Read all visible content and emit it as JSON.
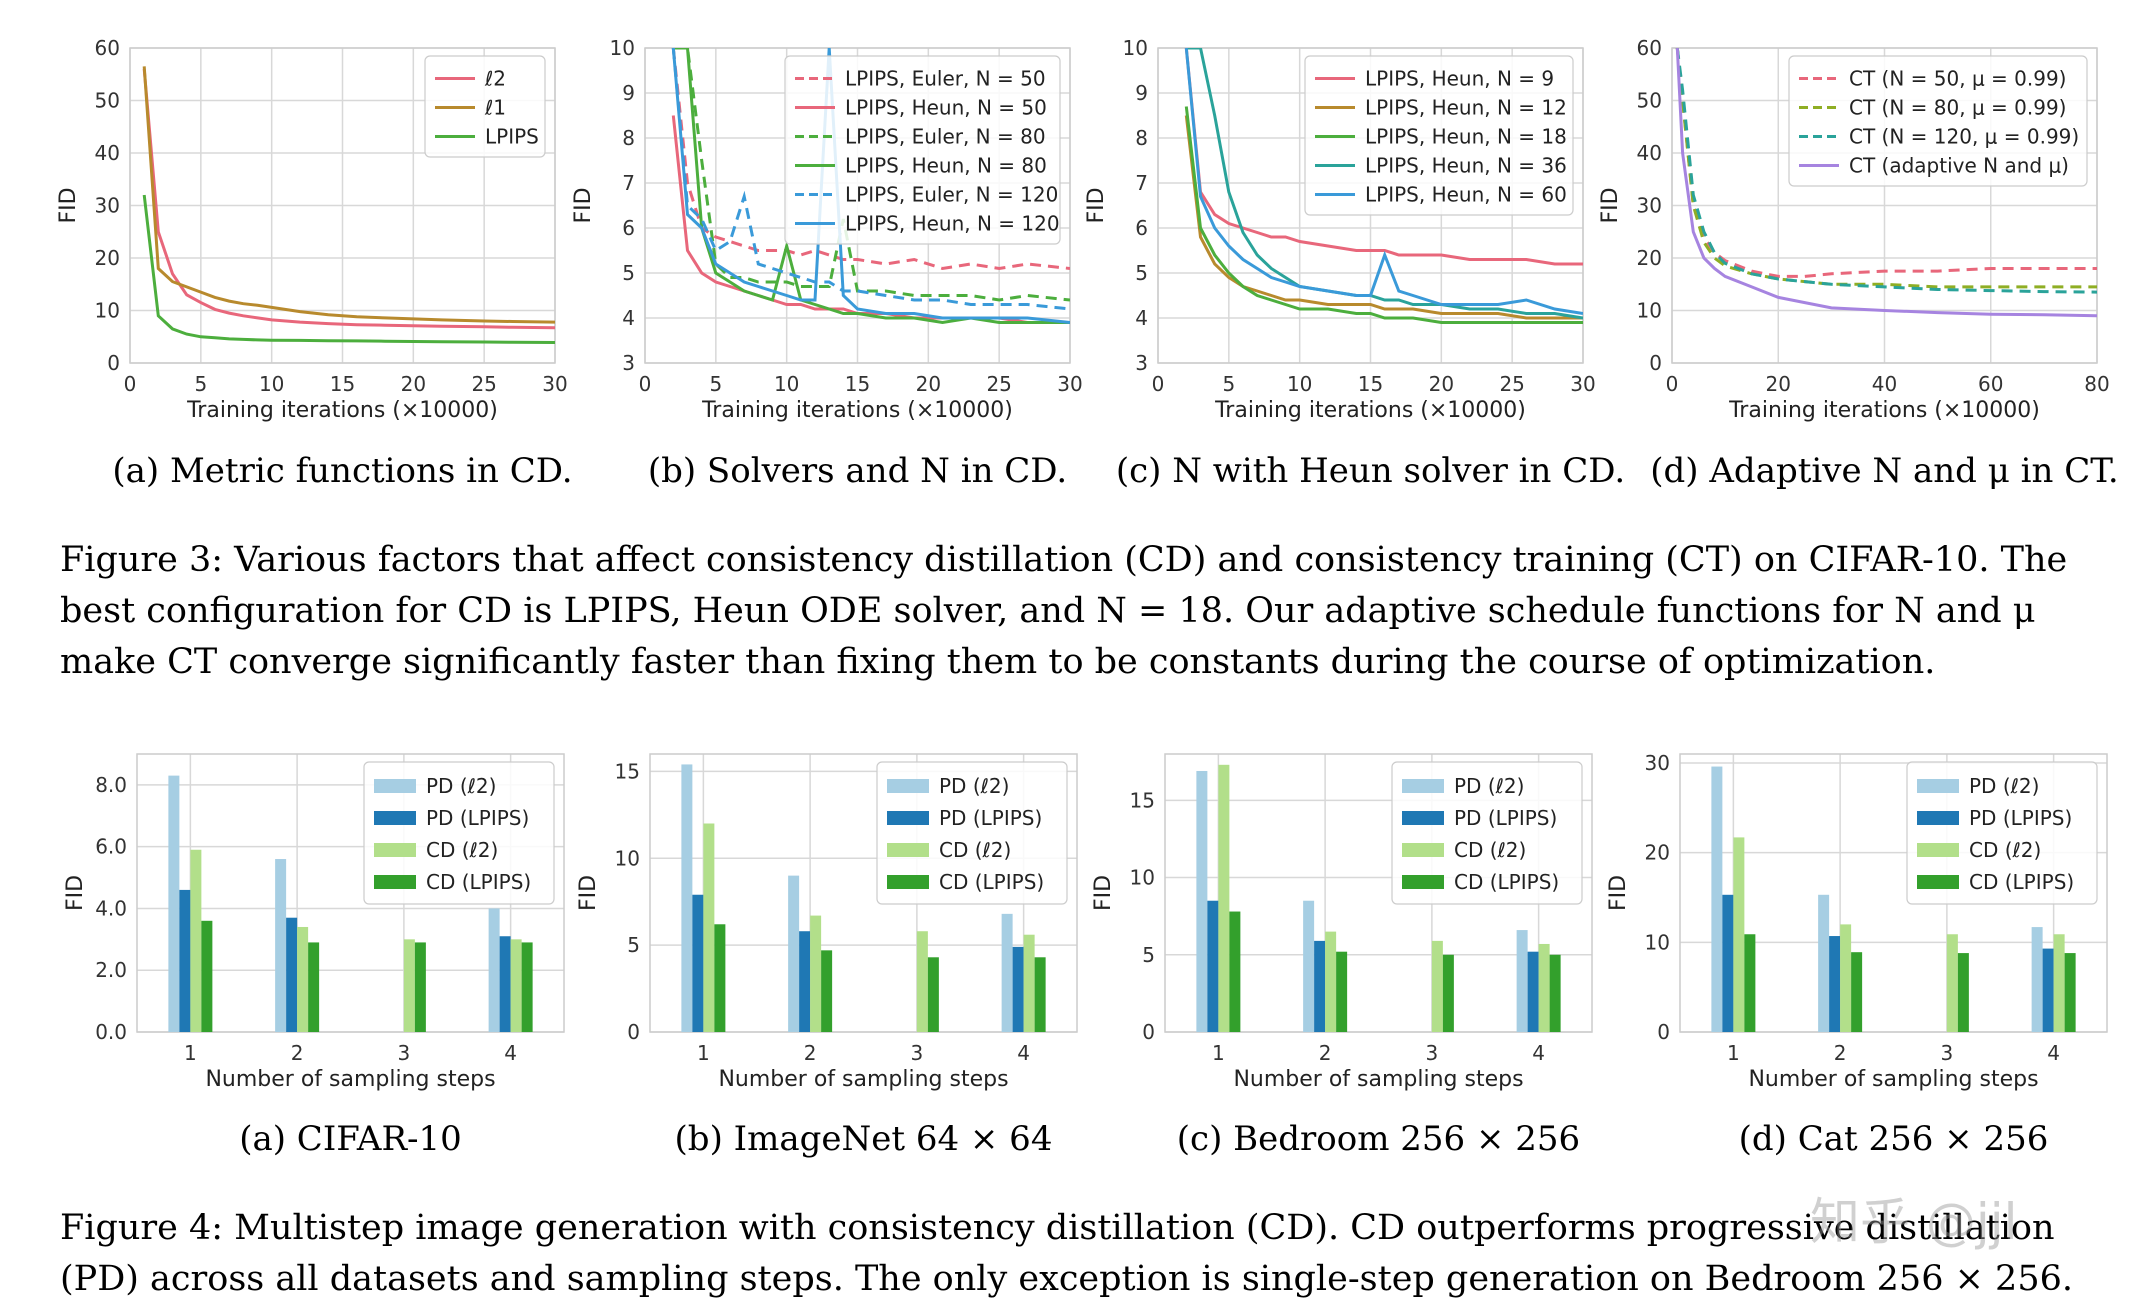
{
  "figure3": {
    "caption": "Figure 3: Various factors that affect consistency distillation (CD) and consistency training (CT) on CIFAR-10. The best configuration for CD is LPIPS, Heun ODE solver, and N = 18. Our adaptive schedule functions for N and μ make CT converge significantly faster than fixing them to be constants during the course of optimization."
  },
  "figure4": {
    "caption": "Figure 4: Multistep image generation with consistency distillation (CD). CD outperforms progressive distillation (PD) across all datasets and sampling steps. The only exception is single-step generation on Bedroom 256 × 256."
  },
  "watermark": "知乎 @jjl",
  "chart_data": [
    {
      "type": "line",
      "subtitle": "(a) Metric functions in CD.",
      "xlabel": "Training iterations (×10000)",
      "ylabel": "FID",
      "xlim": [
        0,
        30
      ],
      "ylim": [
        0,
        60
      ],
      "xticks": [
        0,
        5,
        10,
        15,
        20,
        25,
        30
      ],
      "yticks": [
        0,
        10,
        20,
        30,
        40,
        50,
        60
      ],
      "x": [
        1,
        2,
        3,
        4,
        5,
        6,
        7,
        8,
        9,
        10,
        12,
        14,
        16,
        18,
        20,
        22,
        25,
        27,
        30
      ],
      "legend_position": "top-right",
      "series": [
        {
          "name": "ℓ2",
          "color": "#e8677b",
          "dash": "solid",
          "values": [
            56,
            25,
            17,
            13,
            11.5,
            10.2,
            9.5,
            9,
            8.6,
            8.2,
            7.8,
            7.5,
            7.3,
            7.2,
            7.1,
            7.0,
            6.9,
            6.8,
            6.7
          ]
        },
        {
          "name": "ℓ1",
          "color": "#b88a2d",
          "dash": "solid",
          "values": [
            56.5,
            18,
            15.5,
            14.5,
            13.5,
            12.5,
            11.8,
            11.3,
            11,
            10.6,
            9.8,
            9.2,
            8.8,
            8.6,
            8.4,
            8.2,
            8.0,
            7.9,
            7.8
          ]
        },
        {
          "name": "LPIPS",
          "color": "#4cae3d",
          "dash": "solid",
          "values": [
            32,
            9,
            6.5,
            5.5,
            5.0,
            4.8,
            4.6,
            4.5,
            4.4,
            4.35,
            4.3,
            4.25,
            4.2,
            4.15,
            4.1,
            4.05,
            4.0,
            3.95,
            3.9
          ]
        }
      ]
    },
    {
      "type": "line",
      "subtitle": "(b) Solvers and N in CD.",
      "xlabel": "Training iterations (×10000)",
      "ylabel": "FID",
      "xlim": [
        0,
        30
      ],
      "ylim": [
        3,
        10
      ],
      "xticks": [
        0,
        5,
        10,
        15,
        20,
        25,
        30
      ],
      "yticks": [
        3,
        4,
        5,
        6,
        7,
        8,
        9,
        10
      ],
      "x": [
        2,
        3,
        4,
        5,
        6,
        7,
        8,
        9,
        10,
        11,
        12,
        13,
        14,
        15,
        17,
        19,
        21,
        23,
        25,
        27,
        30
      ],
      "legend_position": "top-right",
      "series": [
        {
          "name": "LPIPS, Euler, N = 50",
          "color": "#e8677b",
          "dash": "dashed",
          "values": [
            10,
            7.0,
            6.0,
            5.8,
            5.7,
            5.6,
            5.5,
            5.5,
            5.5,
            5.4,
            5.5,
            5.4,
            5.3,
            5.3,
            5.2,
            5.3,
            5.1,
            5.2,
            5.1,
            5.2,
            5.1
          ]
        },
        {
          "name": "LPIPS, Heun, N = 50",
          "color": "#e8677b",
          "dash": "solid",
          "values": [
            8.5,
            5.5,
            5.0,
            4.8,
            4.7,
            4.6,
            4.5,
            4.4,
            4.3,
            4.3,
            4.2,
            4.2,
            4.2,
            4.1,
            4.1,
            4.0,
            4.0,
            4.0,
            4.0,
            3.9,
            3.9
          ]
        },
        {
          "name": "LPIPS, Euler, N = 80",
          "color": "#4cae3d",
          "dash": "dashed",
          "values": [
            10,
            10,
            7.5,
            5.2,
            4.9,
            4.9,
            4.8,
            4.8,
            4.8,
            4.7,
            4.7,
            4.7,
            6.2,
            4.6,
            4.6,
            4.5,
            4.5,
            4.5,
            4.4,
            4.5,
            4.4
          ]
        },
        {
          "name": "LPIPS, Heun, N = 80",
          "color": "#4cae3d",
          "dash": "solid",
          "values": [
            10,
            10,
            6.0,
            5.0,
            4.8,
            4.6,
            4.5,
            4.4,
            5.6,
            4.4,
            4.3,
            4.2,
            4.1,
            4.1,
            4.0,
            4.0,
            3.9,
            4.0,
            3.9,
            3.9,
            3.9
          ]
        },
        {
          "name": "LPIPS, Euler, N = 120",
          "color": "#3a9ad9",
          "dash": "dashed",
          "values": [
            10,
            6.5,
            6.2,
            5.5,
            5.7,
            6.7,
            5.2,
            5.1,
            5.0,
            4.9,
            4.8,
            4.8,
            4.6,
            4.6,
            4.5,
            4.4,
            4.4,
            4.3,
            4.3,
            4.3,
            4.2
          ]
        },
        {
          "name": "LPIPS, Heun, N = 120",
          "color": "#3a9ad9",
          "dash": "solid",
          "values": [
            10,
            6.3,
            6.0,
            5.2,
            5.0,
            4.8,
            4.7,
            4.6,
            4.5,
            4.4,
            4.4,
            10,
            4.5,
            4.2,
            4.1,
            4.1,
            4.0,
            4.0,
            4.0,
            4.0,
            3.9
          ]
        }
      ]
    },
    {
      "type": "line",
      "subtitle": "(c) N with Heun solver in CD.",
      "xlabel": "Training iterations (×10000)",
      "ylabel": "FID",
      "xlim": [
        0,
        30
      ],
      "ylim": [
        3,
        10
      ],
      "xticks": [
        0,
        5,
        10,
        15,
        20,
        25,
        30
      ],
      "yticks": [
        3,
        4,
        5,
        6,
        7,
        8,
        9,
        10
      ],
      "x": [
        2,
        3,
        4,
        5,
        6,
        7,
        8,
        9,
        10,
        12,
        14,
        15,
        16,
        17,
        18,
        20,
        22,
        24,
        26,
        28,
        30
      ],
      "legend_position": "top-right",
      "series": [
        {
          "name": "LPIPS, Heun, N = 9",
          "color": "#e8677b",
          "dash": "solid",
          "values": [
            10,
            6.8,
            6.3,
            6.1,
            6.0,
            5.9,
            5.8,
            5.8,
            5.7,
            5.6,
            5.5,
            5.5,
            5.5,
            5.4,
            5.4,
            5.4,
            5.3,
            5.3,
            5.3,
            5.2,
            5.2
          ]
        },
        {
          "name": "LPIPS, Heun, N = 12",
          "color": "#b88a2d",
          "dash": "solid",
          "values": [
            8.5,
            5.8,
            5.2,
            4.9,
            4.7,
            4.6,
            4.5,
            4.4,
            4.4,
            4.3,
            4.3,
            4.3,
            4.2,
            4.2,
            4.2,
            4.1,
            4.1,
            4.1,
            4.0,
            4.0,
            4.0
          ]
        },
        {
          "name": "LPIPS, Heun, N = 18",
          "color": "#4cae3d",
          "dash": "solid",
          "values": [
            8.7,
            6.0,
            5.4,
            5.0,
            4.7,
            4.5,
            4.4,
            4.3,
            4.2,
            4.2,
            4.1,
            4.1,
            4.0,
            4.0,
            4.0,
            3.9,
            3.9,
            3.9,
            3.9,
            3.9,
            3.9
          ]
        },
        {
          "name": "LPIPS, Heun, N = 36",
          "color": "#2aa39a",
          "dash": "solid",
          "values": [
            10,
            10,
            8.5,
            6.8,
            5.9,
            5.4,
            5.1,
            4.9,
            4.7,
            4.6,
            4.5,
            4.5,
            4.4,
            4.4,
            4.3,
            4.3,
            4.2,
            4.2,
            4.1,
            4.1,
            4.0
          ]
        },
        {
          "name": "LPIPS, Heun, N = 60",
          "color": "#3a9ad9",
          "dash": "solid",
          "values": [
            10,
            6.7,
            6.0,
            5.6,
            5.3,
            5.1,
            4.9,
            4.8,
            4.7,
            4.6,
            4.5,
            4.5,
            5.4,
            4.6,
            4.5,
            4.3,
            4.3,
            4.3,
            4.4,
            4.2,
            4.1
          ]
        }
      ]
    },
    {
      "type": "line",
      "subtitle": "(d) Adaptive N and μ in CT.",
      "xlabel": "Training iterations (×10000)",
      "ylabel": "FID",
      "xlim": [
        0,
        80
      ],
      "ylim": [
        0,
        60
      ],
      "xticks": [
        0,
        20,
        40,
        60,
        80
      ],
      "yticks": [
        0,
        10,
        20,
        30,
        40,
        50,
        60
      ],
      "x": [
        1,
        2,
        4,
        6,
        8,
        10,
        15,
        20,
        25,
        30,
        40,
        50,
        60,
        70,
        80
      ],
      "legend_position": "top-right",
      "series": [
        {
          "name": "CT (N = 50, μ = 0.99)",
          "color": "#e8677b",
          "dash": "dashed",
          "values": [
            60,
            50,
            30,
            24,
            21,
            19.5,
            17.5,
            16.5,
            16.5,
            17,
            17.5,
            17.5,
            18,
            18,
            18
          ]
        },
        {
          "name": "CT (N = 80, μ = 0.99)",
          "color": "#8fae24",
          "dash": "dashed",
          "values": [
            60,
            50,
            30,
            23,
            20,
            18.5,
            17,
            16,
            15.5,
            15,
            15,
            14.5,
            14.5,
            14.5,
            14.5
          ]
        },
        {
          "name": "CT (N = 120, μ = 0.99)",
          "color": "#2aa39a",
          "dash": "dashed",
          "values": [
            60,
            52,
            32,
            25,
            21,
            19,
            17,
            16,
            15.5,
            15,
            14.5,
            14,
            13.8,
            13.6,
            13.5
          ]
        },
        {
          "name": "CT (adaptive N and μ)",
          "color": "#a684e0",
          "dash": "solid",
          "values": [
            60,
            40,
            25,
            20,
            18,
            16.5,
            14.5,
            12.5,
            11.5,
            10.5,
            10,
            9.6,
            9.3,
            9.2,
            9.0
          ]
        }
      ]
    },
    {
      "type": "bar",
      "subtitle": "(a) CIFAR-10",
      "xlabel": "Number of sampling steps",
      "ylabel": "FID",
      "categories": [
        "1",
        "2",
        "3",
        "4"
      ],
      "ylim": [
        0,
        9
      ],
      "yticks": [
        0,
        2,
        4,
        6,
        8
      ],
      "ytick_labels": [
        "0.0",
        "2.0",
        "4.0",
        "6.0",
        "8.0"
      ],
      "legend_position": "top-right",
      "series": [
        {
          "name": "PD (ℓ2)",
          "color": "#a6cee3",
          "values": [
            8.3,
            5.6,
            null,
            4.0
          ]
        },
        {
          "name": "PD (LPIPS)",
          "color": "#1f78b4",
          "values": [
            4.6,
            3.7,
            null,
            3.1
          ]
        },
        {
          "name": "CD (ℓ2)",
          "color": "#b2df8a",
          "values": [
            5.9,
            3.4,
            3.0,
            3.0
          ]
        },
        {
          "name": "CD (LPIPS)",
          "color": "#33a02c",
          "values": [
            3.6,
            2.9,
            2.9,
            2.9
          ]
        }
      ]
    },
    {
      "type": "bar",
      "subtitle": "(b) ImageNet 64 × 64",
      "xlabel": "Number of sampling steps",
      "ylabel": "FID",
      "categories": [
        "1",
        "2",
        "3",
        "4"
      ],
      "ylim": [
        0,
        16
      ],
      "yticks": [
        0,
        5,
        10,
        15
      ],
      "ytick_labels": [
        "0",
        "5",
        "10",
        "15"
      ],
      "legend_position": "top-right",
      "series": [
        {
          "name": "PD (ℓ2)",
          "color": "#a6cee3",
          "values": [
            15.4,
            9.0,
            null,
            6.8
          ]
        },
        {
          "name": "PD (LPIPS)",
          "color": "#1f78b4",
          "values": [
            7.9,
            5.8,
            null,
            4.9
          ]
        },
        {
          "name": "CD (ℓ2)",
          "color": "#b2df8a",
          "values": [
            12.0,
            6.7,
            5.8,
            5.6
          ]
        },
        {
          "name": "CD (LPIPS)",
          "color": "#33a02c",
          "values": [
            6.2,
            4.7,
            4.3,
            4.3
          ]
        }
      ]
    },
    {
      "type": "bar",
      "subtitle": "(c) Bedroom 256 × 256",
      "xlabel": "Number of sampling steps",
      "ylabel": "FID",
      "categories": [
        "1",
        "2",
        "3",
        "4"
      ],
      "ylim": [
        0,
        18
      ],
      "yticks": [
        0,
        5,
        10,
        15
      ],
      "ytick_labels": [
        "0",
        "5",
        "10",
        "15"
      ],
      "legend_position": "top-right",
      "series": [
        {
          "name": "PD (ℓ2)",
          "color": "#a6cee3",
          "values": [
            16.9,
            8.5,
            null,
            6.6
          ]
        },
        {
          "name": "PD (LPIPS)",
          "color": "#1f78b4",
          "values": [
            8.5,
            5.9,
            null,
            5.2
          ]
        },
        {
          "name": "CD (ℓ2)",
          "color": "#b2df8a",
          "values": [
            17.3,
            6.5,
            5.9,
            5.7
          ]
        },
        {
          "name": "CD (LPIPS)",
          "color": "#33a02c",
          "values": [
            7.8,
            5.2,
            5.0,
            5.0
          ]
        }
      ]
    },
    {
      "type": "bar",
      "subtitle": "(d) Cat 256 × 256",
      "xlabel": "Number of sampling steps",
      "ylabel": "FID",
      "categories": [
        "1",
        "2",
        "3",
        "4"
      ],
      "ylim": [
        0,
        31
      ],
      "yticks": [
        0,
        10,
        20,
        30
      ],
      "ytick_labels": [
        "0",
        "10",
        "20",
        "30"
      ],
      "legend_position": "top-right",
      "series": [
        {
          "name": "PD (ℓ2)",
          "color": "#a6cee3",
          "values": [
            29.6,
            15.3,
            null,
            11.7
          ]
        },
        {
          "name": "PD (LPIPS)",
          "color": "#1f78b4",
          "values": [
            15.3,
            10.7,
            null,
            9.3
          ]
        },
        {
          "name": "CD (ℓ2)",
          "color": "#b2df8a",
          "values": [
            21.7,
            12.0,
            10.9,
            10.9
          ]
        },
        {
          "name": "CD (LPIPS)",
          "color": "#33a02c",
          "values": [
            10.9,
            8.9,
            8.8,
            8.8
          ]
        }
      ]
    }
  ]
}
